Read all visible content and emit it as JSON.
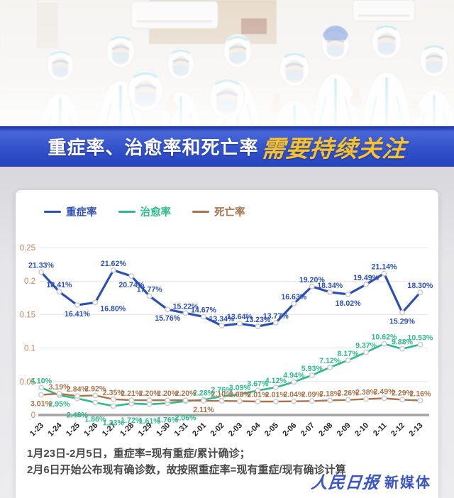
{
  "banner": {
    "title_normal": "重症率、治愈率和死亡率",
    "title_highlight": "需要持续关注",
    "bg_color": "#3353cb",
    "highlight_color": "#f6c32e"
  },
  "chart_data": {
    "type": "line",
    "categories": [
      "1-23",
      "1-24",
      "1-25",
      "1-26",
      "1-27",
      "1-28",
      "1-29",
      "1-30",
      "1-31",
      "2-01",
      "2-02",
      "2-03",
      "2-04",
      "2-05",
      "2-06",
      "2-07",
      "2-08",
      "2-09",
      "2-10",
      "2-11",
      "2-12",
      "2-13"
    ],
    "series": [
      {
        "name": "重症率",
        "color": "#2d50b5",
        "values": [
          21.33,
          18.41,
          16.41,
          16.8,
          21.62,
          20.74,
          17.77,
          15.76,
          15.22,
          14.67,
          13.34,
          13.64,
          13.23,
          13.77,
          16.63,
          19.2,
          18.34,
          18.02,
          19.49,
          21.14,
          15.29,
          18.3
        ],
        "label_pos": [
          "above",
          "above",
          "below",
          "right",
          "above",
          "below",
          "above",
          "below",
          "above",
          "above",
          "above",
          "above",
          "above",
          "above",
          "above",
          "above",
          "above",
          "below",
          "above",
          "above",
          "below",
          "above"
        ]
      },
      {
        "name": "治愈率",
        "color": "#2eba8c",
        "values": [
          4.1,
          2.95,
          2.48,
          1.86,
          1.33,
          1.72,
          1.61,
          1.76,
          2.06,
          2.28,
          2.76,
          3.09,
          3.67,
          4.12,
          4.94,
          5.93,
          7.12,
          8.17,
          9.37,
          10.62,
          9.88,
          10.53
        ],
        "label_pos": [
          "above",
          "below",
          "below2",
          "below2",
          "below2",
          "below2",
          "below2",
          "below2",
          "below2",
          "above",
          "above",
          "above",
          "above",
          "above",
          "above",
          "above",
          "above",
          "above",
          "above",
          "above",
          "above",
          "above"
        ]
      },
      {
        "name": "死亡率",
        "color": "#a9734b",
        "values": [
          3.01,
          3.19,
          2.84,
          2.92,
          2.35,
          2.21,
          2.2,
          2.2,
          2.2,
          2.11,
          2.1,
          2.08,
          2.01,
          2.01,
          2.04,
          2.09,
          2.18,
          2.26,
          2.38,
          2.49,
          2.29,
          2.16
        ],
        "label_pos": [
          "below",
          "above",
          "above",
          "above",
          "above",
          "above",
          "above",
          "above",
          "above",
          "below",
          "above",
          "above",
          "above",
          "above",
          "above",
          "above",
          "above",
          "above",
          "above",
          "above",
          "above",
          "above"
        ]
      }
    ],
    "yticks": [
      0,
      0.05,
      0.1,
      0.15,
      0.2,
      0.25
    ],
    "ylim": [
      0,
      0.25
    ],
    "grid": true,
    "legend_position": "top-left",
    "ytick_color": "#c2835f",
    "xtick_color": "#1f1f1f"
  },
  "footnote": {
    "line1": "1月23日-2月5日，重症率=现有重症/累计确诊；",
    "line2": "2月6日开始公布现有确诊数，故按照重症率=现有重症/现有确诊计算"
  },
  "logo": {
    "script": "人民日报",
    "suffix": "新媒体",
    "color": "#3b55c6"
  }
}
